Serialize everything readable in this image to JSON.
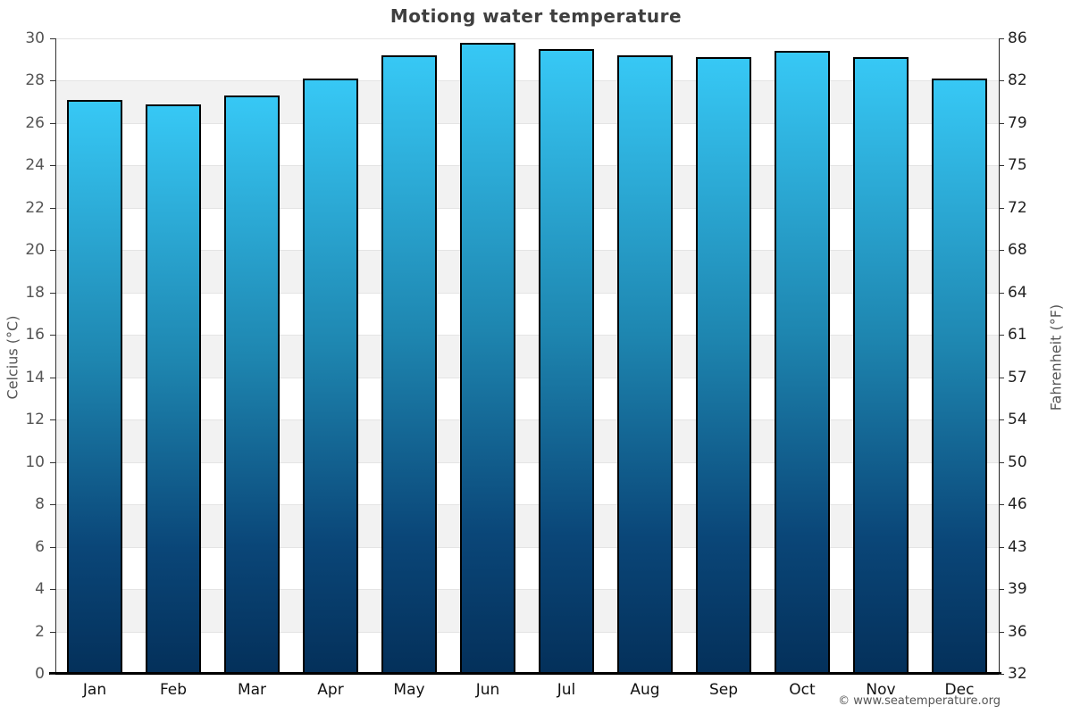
{
  "title": "Motiong water temperature",
  "footer": "© www.seatemperature.org",
  "axes": {
    "left_label": "Celcius (°C)",
    "right_label": "Fahrenheit (°F)",
    "celsius_ticks": [
      30,
      28,
      26,
      24,
      22,
      20,
      18,
      16,
      14,
      12,
      10,
      8,
      6,
      4,
      2,
      0
    ],
    "fahrenheit_tick_labels": [
      "86",
      "82",
      "79",
      "75",
      "72",
      "68",
      "64",
      "61",
      "57",
      "54",
      "50",
      "46",
      "43",
      "39",
      "36",
      "32"
    ]
  },
  "chart_data": {
    "type": "bar",
    "title": "Motiong water temperature",
    "categories": [
      "Jan",
      "Feb",
      "Mar",
      "Apr",
      "May",
      "Jun",
      "Jul",
      "Aug",
      "Sep",
      "Oct",
      "Nov",
      "Dec"
    ],
    "values": [
      27.1,
      26.9,
      27.3,
      28.1,
      29.2,
      29.8,
      29.5,
      29.2,
      29.1,
      29.4,
      29.1,
      28.1
    ],
    "xlabel": "",
    "ylabel": "Celcius (°C)",
    "ylabel_secondary": "Fahrenheit (°F)",
    "ylim": [
      0,
      30
    ],
    "grid": true,
    "legend_position": "none",
    "band_alternating": true,
    "colors": {
      "bar_gradient_top": "#37c8f5",
      "bar_gradient_mid": "#1e86b0",
      "bar_gradient_bottom": "#04305a",
      "bar_border": "#000000",
      "band_alt": "#f2f2f2",
      "gridline": "#e4e4e4",
      "title_text": "#3f3f3f",
      "left_tick_text": "#555555",
      "right_tick_text": "#222222"
    }
  }
}
